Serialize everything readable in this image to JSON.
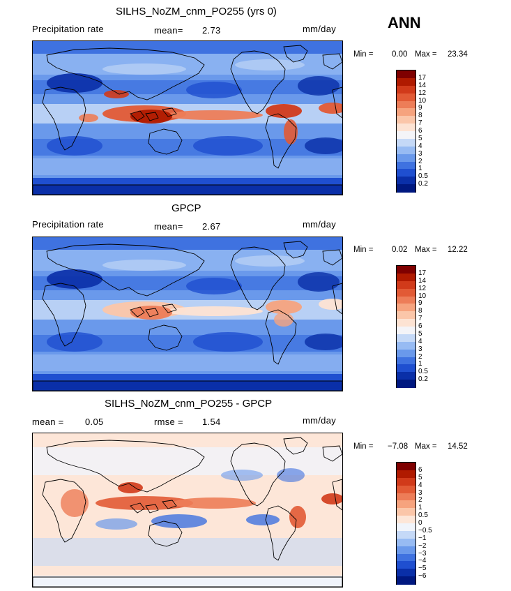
{
  "season": "ANN",
  "panels": [
    {
      "title": "SILHS_NoZM_cnm_PO255 (yrs 0)",
      "left_label": "Precipitation rate",
      "stat1_label": "mean=",
      "stat1_value": "2.73",
      "units": "mm/day",
      "min_label": "Min =",
      "min_value": "0.00",
      "max_label": "Max =",
      "max_value": "23.34",
      "colorbar_labels": [
        "17",
        "14",
        "12",
        "10",
        "9",
        "8",
        "7",
        "6",
        "5",
        "4",
        "3",
        "2",
        "1",
        "0.5",
        "0.2"
      ]
    },
    {
      "title": "GPCP",
      "left_label": "Precipitation rate",
      "stat1_label": "mean=",
      "stat1_value": "2.67",
      "units": "mm/day",
      "min_label": "Min =",
      "min_value": "0.02",
      "max_label": "Max =",
      "max_value": "12.22",
      "colorbar_labels": [
        "17",
        "14",
        "12",
        "10",
        "9",
        "8",
        "7",
        "6",
        "5",
        "4",
        "3",
        "2",
        "1",
        "0.5",
        "0.2"
      ]
    },
    {
      "title": "SILHS_NoZM_cnm_PO255 - GPCP",
      "left_label": "",
      "stat1_label": "mean =",
      "stat1_value": "0.05",
      "stat2_label": "rmse =",
      "stat2_value": "1.54",
      "units": "mm/day",
      "min_label": "Min =",
      "min_value": "−7.08",
      "max_label": "Max =",
      "max_value": "14.52",
      "colorbar_labels": [
        "6",
        "5",
        "4",
        "3",
        "2",
        "1",
        "0.5",
        "0",
        "−0.5",
        "−1",
        "−2",
        "−3",
        "−4",
        "−5",
        "−6"
      ]
    }
  ],
  "colors": {
    "precip_scale": [
      "#7f0000",
      "#b01a00",
      "#d13a1a",
      "#e25a35",
      "#ed7d58",
      "#f6a37e",
      "#fbc6a9",
      "#fde3d3",
      "#f4f4f8",
      "#c5d9f7",
      "#97bbf3",
      "#6a99eb",
      "#3f72e0",
      "#1f4fd0",
      "#0a2fa8",
      "#001880"
    ],
    "diff_scale": [
      "#7f0000",
      "#b01a00",
      "#d13a1a",
      "#e25a35",
      "#ed7d58",
      "#f6a37e",
      "#fbc6a9",
      "#fde6d8",
      "#f0f4fb",
      "#c5d9f7",
      "#97bbf3",
      "#6a99eb",
      "#3f72e0",
      "#1f4fd0",
      "#0a2fa8",
      "#001880"
    ]
  }
}
